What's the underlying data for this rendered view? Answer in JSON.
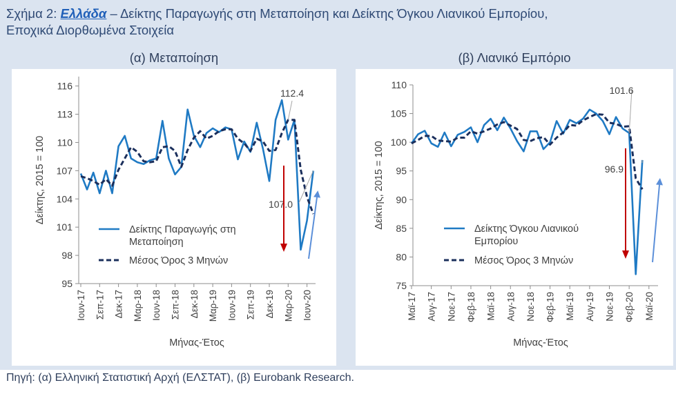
{
  "figure": {
    "title_prefix": "Σχήμα 2:",
    "country": "Ελλάδα",
    "title_rest": " – Δείκτης Παραγωγής στη Μεταποίηση και Δείκτης Όγκου Λιανικού Εμπορίου,",
    "title_line2": "Εποχικά Διορθωμένα Στοιχεία",
    "source": "Πηγή: (α) Ελληνική Στατιστική Αρχή (ΕΛΣΤΑΤ), (β) Eurobank Research."
  },
  "colors": {
    "series": "#1f7ac4",
    "average": "#1b2f5c",
    "down_arrow": "#c00000",
    "up_arrow": "#5b8fd9",
    "background": "#dbe4f0"
  },
  "chart_data": [
    {
      "type": "line",
      "panel_title": "(α) Μεταποίηση",
      "ylabel": "Δείκτης, 2015 = 100",
      "xlabel": "Μήνας-Έτος",
      "ylim": [
        95,
        117
      ],
      "yticks": [
        95,
        98,
        101,
        104,
        107,
        110,
        113,
        116
      ],
      "tick_labels": [
        "Ιουν-17",
        "Σεπ-17",
        "Δεκ-17",
        "Μαρ-18",
        "Ιουν-18",
        "Σεπ-18",
        "Δεκ-18",
        "Μαρ-19",
        "Ιουν-19",
        "Σεπ-19",
        "Δεκ-19",
        "Μαρ-20",
        "Ιουν-20"
      ],
      "series": [
        {
          "name": "Δείκτης Παραγωγής στη Μεταποίηση",
          "values": [
            106.7,
            105.0,
            106.8,
            104.6,
            107.0,
            104.6,
            109.6,
            110.7,
            108.3,
            107.9,
            107.7,
            108.1,
            108.3,
            112.3,
            108.3,
            106.6,
            107.4,
            113.5,
            110.7,
            109.5,
            111.0,
            111.5,
            111.1,
            111.6,
            111.4,
            108.2,
            110.1,
            109.0,
            112.1,
            109.3,
            105.9,
            112.4,
            114.5,
            110.3,
            112.4,
            98.6,
            101.7,
            107.0
          ]
        },
        {
          "name": "Μέσος Όρος 3 Μηνών",
          "values": [
            106.4,
            106.2,
            105.9,
            105.5,
            106.1,
            105.4,
            107.1,
            108.3,
            109.5,
            109.0,
            108.0,
            107.9,
            108.0,
            109.5,
            109.6,
            109.1,
            107.4,
            109.2,
            110.5,
            111.2,
            110.4,
            110.7,
            111.2,
            111.4,
            111.4,
            110.4,
            109.9,
            109.1,
            110.4,
            110.1,
            109.1,
            109.2,
            111.0,
            112.4,
            112.4,
            107.1,
            104.2,
            102.4
          ]
        }
      ],
      "annotations": [
        {
          "label": "112.4",
          "value": 112.4
        },
        {
          "label": "107.0",
          "value": 107.0
        }
      ]
    },
    {
      "type": "line",
      "panel_title": "(β) Λιανικό Εμπόριο",
      "ylabel": "Δείκτης, 2015 = 100",
      "xlabel": "Μήνας-Έτος",
      "ylim": [
        75,
        110
      ],
      "yticks": [
        75,
        80,
        85,
        90,
        95,
        100,
        105,
        110
      ],
      "tick_labels": [
        "Μαϊ-17",
        "Αυγ-17",
        "Νοε-17",
        "Φεβ-18",
        "Μαϊ-18",
        "Αυγ-18",
        "Νοε-18",
        "Φεβ-19",
        "Μαϊ-19",
        "Αυγ-19",
        "Νοε-19",
        "Φεβ-20",
        "Μαϊ-20"
      ],
      "series": [
        {
          "name": "Δείκτης Όγκου Λιανικού Εμπορίου",
          "values": [
            99.8,
            101.4,
            102.0,
            99.8,
            99.2,
            101.7,
            99.3,
            101.3,
            101.8,
            102.6,
            100.0,
            103.0,
            104.1,
            102.1,
            104.3,
            102.4,
            100.2,
            98.4,
            101.9,
            101.9,
            98.8,
            100.0,
            103.7,
            101.5,
            103.9,
            103.3,
            104.1,
            105.7,
            105.0,
            103.7,
            101.4,
            104.4,
            102.4,
            101.6,
            77.0,
            96.9
          ]
        },
        {
          "name": "Μέσος Όρος 3 Μηνών",
          "values": [
            99.8,
            100.4,
            101.1,
            101.1,
            100.3,
            100.2,
            100.1,
            100.8,
            100.8,
            101.9,
            101.5,
            101.9,
            102.4,
            103.1,
            103.5,
            102.9,
            102.3,
            100.4,
            100.2,
            100.7,
            100.9,
            99.6,
            100.8,
            101.7,
            103.0,
            102.9,
            103.8,
            104.4,
            104.9,
            104.8,
            103.4,
            103.2,
            102.7,
            102.8,
            93.7,
            91.8
          ]
        }
      ],
      "annotations": [
        {
          "label": "101.6",
          "value": 101.6
        },
        {
          "label": "96.9",
          "value": 96.9
        }
      ]
    }
  ]
}
